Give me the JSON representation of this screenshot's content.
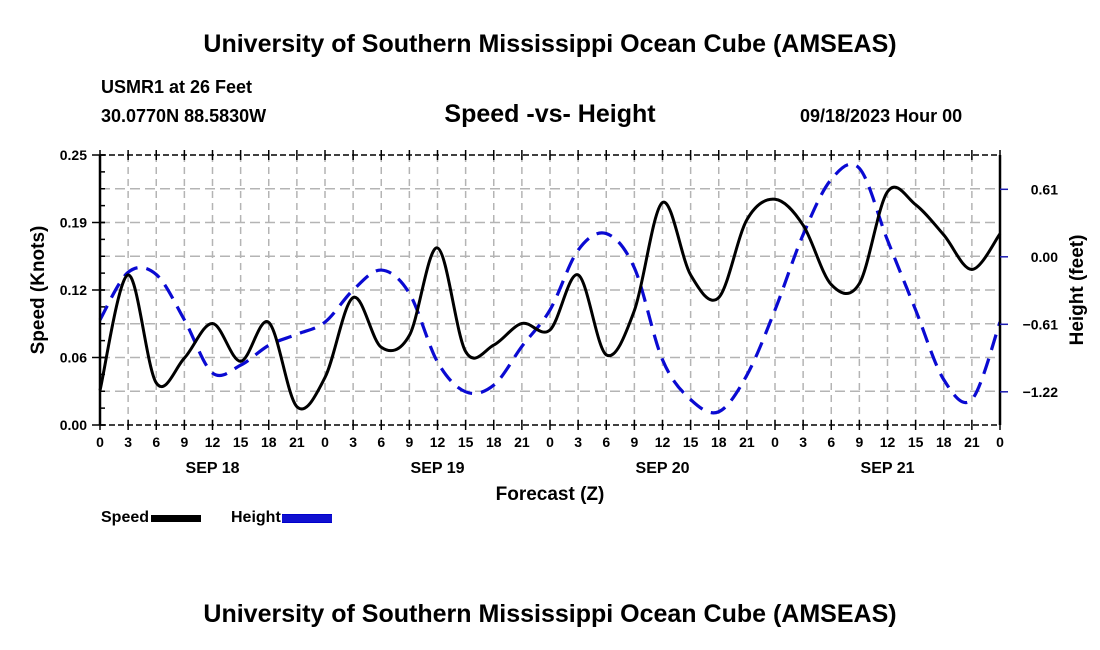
{
  "header": {
    "main_title": "University of Southern Mississippi Ocean Cube (AMSEAS)",
    "station": "USMR1 at 26 Feet",
    "coords": "30.0770N  88.5830W",
    "subtitle": "Speed -vs- Height",
    "datetime": "09/18/2023 Hour 00"
  },
  "footer": {
    "bottom_title": "University of Southern Mississippi Ocean Cube (AMSEAS)"
  },
  "legend": {
    "speed_label": "Speed",
    "height_label": "Height"
  },
  "colors": {
    "speed": "#000000",
    "height": "#0a0ad2",
    "grid": "#b4b4b4"
  },
  "chart_data": {
    "type": "line",
    "title": "Speed -vs- Height",
    "xlabel": "Forecast (Z)",
    "ylabel": "Speed (Knots)",
    "y2label": "Height (feet)",
    "xlim": [
      0,
      96
    ],
    "ylim": [
      0.0,
      0.25
    ],
    "y2lim": [
      -1.52,
      0.92
    ],
    "grid": true,
    "legend_position": "bottom-left",
    "x_tick_labels": [
      "0",
      "3",
      "6",
      "9",
      "12",
      "15",
      "18",
      "21",
      "0",
      "3",
      "6",
      "9",
      "12",
      "15",
      "18",
      "21",
      "0",
      "3",
      "6",
      "9",
      "12",
      "15",
      "18",
      "21",
      "0",
      "3",
      "6",
      "9",
      "12",
      "15",
      "18",
      "21",
      "0"
    ],
    "date_labels": [
      {
        "label": "SEP 18",
        "hour": 12
      },
      {
        "label": "SEP 19",
        "hour": 36
      },
      {
        "label": "SEP 20",
        "hour": 60
      },
      {
        "label": "SEP 21",
        "hour": 84
      }
    ],
    "y_ticks": [
      {
        "value": 0.0,
        "label": "0.00"
      },
      {
        "value": 0.0625,
        "label": "0.06"
      },
      {
        "value": 0.125,
        "label": "0.12"
      },
      {
        "value": 0.1875,
        "label": "0.19"
      },
      {
        "value": 0.25,
        "label": "0.25"
      }
    ],
    "y2_ticks": [
      {
        "value": 0.61,
        "label": "0.61"
      },
      {
        "value": 0.0,
        "label": "0.00"
      },
      {
        "value": -0.61,
        "label": "−0.61"
      },
      {
        "value": -1.22,
        "label": "−1.22"
      }
    ],
    "x": [
      0,
      3,
      6,
      9,
      12,
      15,
      18,
      21,
      24,
      27,
      30,
      33,
      36,
      39,
      42,
      45,
      48,
      51,
      54,
      57,
      60,
      63,
      66,
      69,
      72,
      75,
      78,
      81,
      84,
      87,
      90,
      93,
      96
    ],
    "series": [
      {
        "name": "Speed",
        "axis": "left",
        "style": "solid",
        "values": [
          0.032,
          0.139,
          0.039,
          0.062,
          0.094,
          0.059,
          0.095,
          0.017,
          0.044,
          0.118,
          0.072,
          0.083,
          0.164,
          0.068,
          0.074,
          0.094,
          0.088,
          0.139,
          0.065,
          0.106,
          0.206,
          0.139,
          0.118,
          0.19,
          0.209,
          0.185,
          0.13,
          0.131,
          0.216,
          0.204,
          0.176,
          0.144,
          0.177
        ]
      },
      {
        "name": "Height",
        "axis": "right",
        "style": "dashed",
        "values": [
          -0.57,
          -0.14,
          -0.16,
          -0.57,
          -1.05,
          -0.98,
          -0.8,
          -0.7,
          -0.59,
          -0.3,
          -0.12,
          -0.33,
          -0.95,
          -1.22,
          -1.16,
          -0.81,
          -0.48,
          0.06,
          0.21,
          -0.1,
          -0.93,
          -1.29,
          -1.4,
          -1.07,
          -0.48,
          0.2,
          0.7,
          0.8,
          0.15,
          -0.48,
          -1.11,
          -1.29,
          -0.59
        ]
      }
    ]
  }
}
